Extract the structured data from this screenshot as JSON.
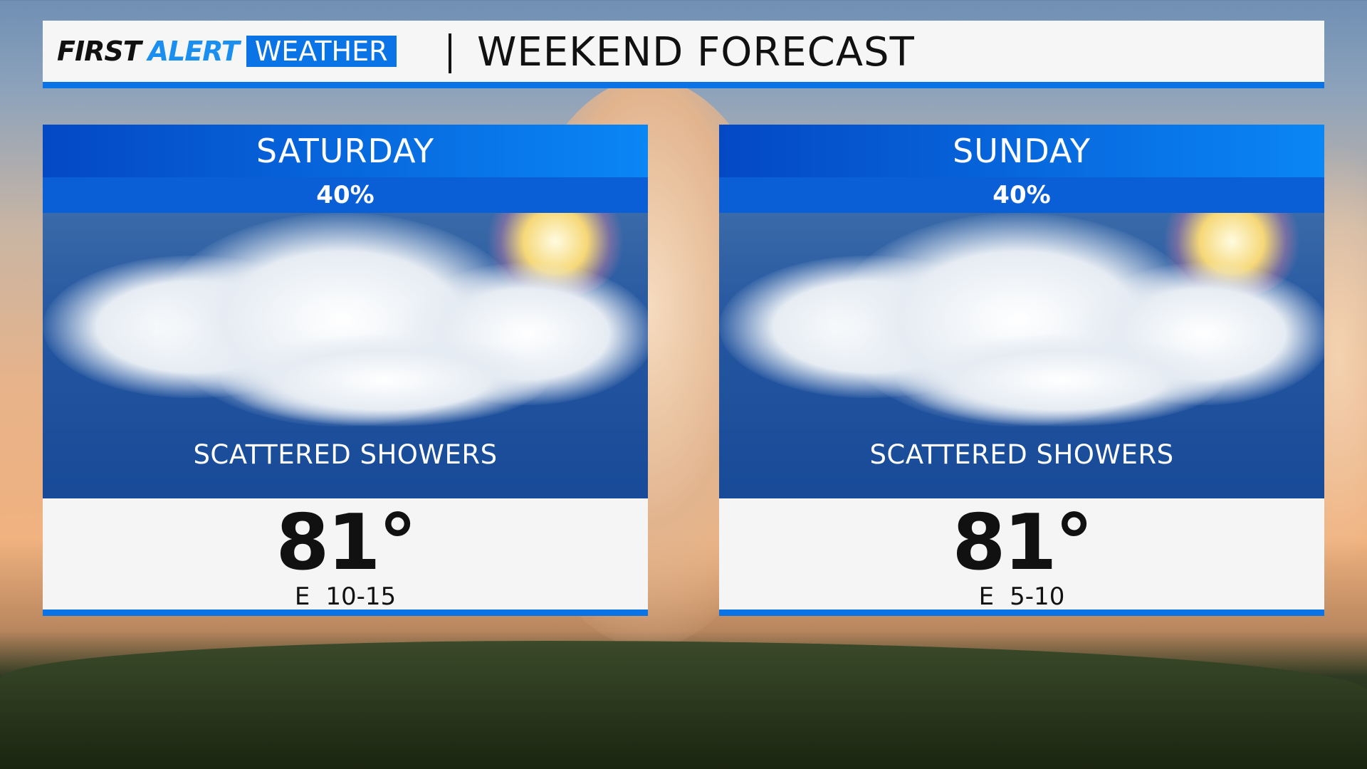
{
  "header": {
    "logo": {
      "first": "FIRST",
      "alert": "ALERT",
      "weather": "WEATHER"
    },
    "title": "WEEKEND FORECAST"
  },
  "colors": {
    "brand_blue": "#0a74e6",
    "alert_blue": "#1a8ff0"
  },
  "days": [
    {
      "day": "SATURDAY",
      "precip_chance": "40%",
      "icon": "partly-cloudy-showers-icon",
      "condition": "SCATTERED SHOWERS",
      "high": "81°",
      "wind_dir": "E",
      "wind_speed": "10-15"
    },
    {
      "day": "SUNDAY",
      "precip_chance": "40%",
      "icon": "partly-cloudy-showers-icon",
      "condition": "SCATTERED SHOWERS",
      "high": "81°",
      "wind_dir": "E",
      "wind_speed": "5-10"
    }
  ]
}
